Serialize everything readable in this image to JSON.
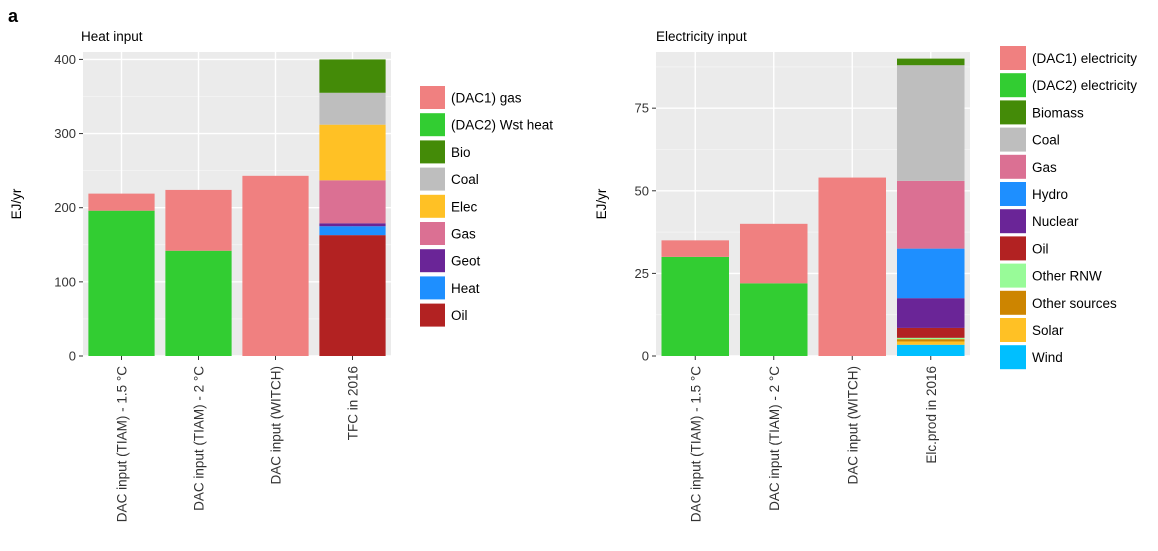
{
  "panel_label": "a",
  "chart_data": [
    {
      "type": "bar",
      "stacked": true,
      "title": "Heat input",
      "ylabel": "EJ/yr",
      "xlabel": "",
      "ylim": [
        0,
        410
      ],
      "yticks": [
        0,
        100,
        200,
        300,
        400
      ],
      "grid": true,
      "legend_position": "right",
      "categories": [
        "DAC input (TIAM) - 1.5 °C",
        "DAC input (TIAM) - 2 °C",
        "DAC input (WITCH)",
        "TFC in 2016"
      ],
      "legend": [
        {
          "name": "(DAC1) gas",
          "color": "#F08080"
        },
        {
          "name": "(DAC2) Wst heat",
          "color": "#32CD32"
        },
        {
          "name": "Bio",
          "color": "#448B08"
        },
        {
          "name": "Coal",
          "color": "#BEBEBE"
        },
        {
          "name": "Elec",
          "color": "#FFC125"
        },
        {
          "name": "Gas",
          "color": "#DB7093"
        },
        {
          "name": "Geot",
          "color": "#6A2597"
        },
        {
          "name": "Heat",
          "color": "#1E8FFF"
        },
        {
          "name": "Oil",
          "color": "#B22222"
        }
      ],
      "stack_order": [
        "(DAC2) Wst heat",
        "(DAC1) gas",
        "Oil",
        "Heat",
        "Geot",
        "Gas",
        "Elec",
        "Coal",
        "Bio"
      ],
      "values": {
        "(DAC1) gas": [
          23,
          82,
          243,
          0
        ],
        "(DAC2) Wst heat": [
          196,
          142,
          0,
          0
        ],
        "Bio": [
          0,
          0,
          0,
          45
        ],
        "Coal": [
          0,
          0,
          0,
          43
        ],
        "Elec": [
          0,
          0,
          0,
          75
        ],
        "Gas": [
          0,
          0,
          0,
          58
        ],
        "Geot": [
          0,
          0,
          0,
          4
        ],
        "Heat": [
          0,
          0,
          0,
          12
        ],
        "Oil": [
          0,
          0,
          0,
          163
        ]
      }
    },
    {
      "type": "bar",
      "stacked": true,
      "title": "Electricity input",
      "ylabel": "EJ/yr",
      "xlabel": "",
      "ylim": [
        0,
        92
      ],
      "yticks": [
        0,
        25,
        50,
        75
      ],
      "grid": true,
      "legend_position": "right",
      "categories": [
        "DAC input (TIAM) - 1.5 °C",
        "DAC input (TIAM) - 2 °C",
        "DAC input (WITCH)",
        "Elc.prod in 2016"
      ],
      "legend": [
        {
          "name": "(DAC1) electricity",
          "color": "#F08080"
        },
        {
          "name": "(DAC2) electricity",
          "color": "#32CD32"
        },
        {
          "name": "Biomass",
          "color": "#448B08"
        },
        {
          "name": "Coal",
          "color": "#BEBEBE"
        },
        {
          "name": "Gas",
          "color": "#DB7093"
        },
        {
          "name": "Hydro",
          "color": "#1E8FFF"
        },
        {
          "name": "Nuclear",
          "color": "#6A2597"
        },
        {
          "name": "Oil",
          "color": "#B22222"
        },
        {
          "name": "Other RNW",
          "color": "#98FB98"
        },
        {
          "name": "Other sources",
          "color": "#CD8500"
        },
        {
          "name": "Solar",
          "color": "#FFC125"
        },
        {
          "name": "Wind",
          "color": "#00BFFF"
        }
      ],
      "stack_order": [
        "(DAC2) electricity",
        "(DAC1) electricity",
        "Wind",
        "Solar",
        "Other sources",
        "Other RNW",
        "Oil",
        "Nuclear",
        "Hydro",
        "Gas",
        "Coal",
        "Biomass"
      ],
      "values": {
        "(DAC1) electricity": [
          5,
          18,
          54,
          0
        ],
        "(DAC2) electricity": [
          30,
          22,
          0,
          0
        ],
        "Biomass": [
          0,
          0,
          0,
          2
        ],
        "Coal": [
          0,
          0,
          0,
          35
        ],
        "Gas": [
          0,
          0,
          0,
          20.5
        ],
        "Hydro": [
          0,
          0,
          0,
          15
        ],
        "Nuclear": [
          0,
          0,
          0,
          9
        ],
        "Oil": [
          0,
          0,
          0,
          3
        ],
        "Other RNW": [
          0,
          0,
          0,
          0.4
        ],
        "Other sources": [
          0,
          0,
          0,
          0.7
        ],
        "Solar": [
          0,
          0,
          0,
          1
        ],
        "Wind": [
          0,
          0,
          0,
          3.4
        ]
      }
    }
  ]
}
